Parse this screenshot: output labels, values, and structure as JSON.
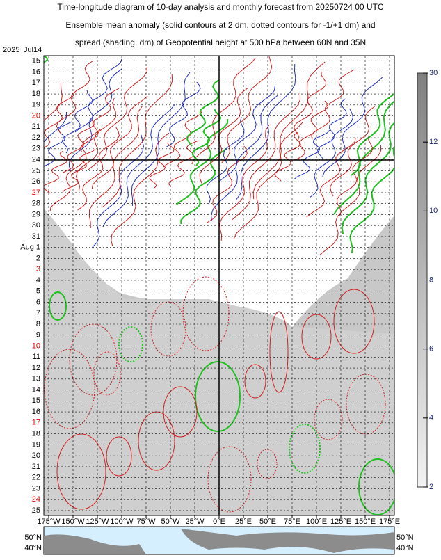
{
  "chart_data": {
    "type": "hovmoller",
    "title": [
      "Time-longitude diagram of 10-day analysis and monthly forecast from 20250724 00 UTC",
      "Ensemble mean anomaly (solid contours at 2 dm, dotted contours for -1/+1 dm) and",
      "spread (shading, dm) of Geopotential height at 500 hPa between 60N and 35N"
    ],
    "year": "2025",
    "categories": [
      "Jul14",
      "15",
      "16",
      "17",
      "18",
      "19",
      "20",
      "21",
      "22",
      "23",
      "24",
      "25",
      "26",
      "27",
      "28",
      "29",
      "30",
      "31",
      "Aug  1",
      "2",
      "3",
      "4",
      "5",
      "6",
      "7",
      "8",
      "9",
      "10",
      "11",
      "12",
      "13",
      "14",
      "15",
      "16",
      "17",
      "18",
      "19",
      "20",
      "21",
      "22",
      "23",
      "24",
      "25"
    ],
    "category_colors": [
      "#000",
      "#000",
      "#000",
      "#000",
      "#000",
      "#000",
      "#e00000",
      "#000",
      "#000",
      "#000",
      "#000",
      "#000",
      "#000",
      "#e00000",
      "#000",
      "#000",
      "#000",
      "#000",
      "#000",
      "#000",
      "#e00000",
      "#000",
      "#000",
      "#000",
      "#000",
      "#000",
      "#000",
      "#e00000",
      "#000",
      "#000",
      "#000",
      "#000",
      "#000",
      "#000",
      "#e00000",
      "#000",
      "#000",
      "#000",
      "#000",
      "#000",
      "#000",
      "#e00000",
      "#000"
    ],
    "xlim": [
      -180,
      180
    ],
    "xticks": [
      {
        "value": -175,
        "label": "175°W"
      },
      {
        "value": -150,
        "label": "150°W"
      },
      {
        "value": -125,
        "label": "125°W"
      },
      {
        "value": -100,
        "label": "100°W"
      },
      {
        "value": -75,
        "label": "75°W"
      },
      {
        "value": -50,
        "label": "50°W"
      },
      {
        "value": -25,
        "label": "25°W"
      },
      {
        "value": 0,
        "label": "0°E"
      },
      {
        "value": 25,
        "label": "25°E"
      },
      {
        "value": 50,
        "label": "50°E"
      },
      {
        "value": 75,
        "label": "75°E"
      },
      {
        "value": 100,
        "label": "100°E"
      },
      {
        "value": 125,
        "label": "125°E"
      },
      {
        "value": 150,
        "label": "150°E"
      },
      {
        "value": 175,
        "label": "175°E"
      }
    ],
    "colorbar_ticks": [
      2,
      4,
      6,
      8,
      10,
      12,
      30
    ],
    "map_labels": [
      "50°N",
      "40°N"
    ]
  }
}
